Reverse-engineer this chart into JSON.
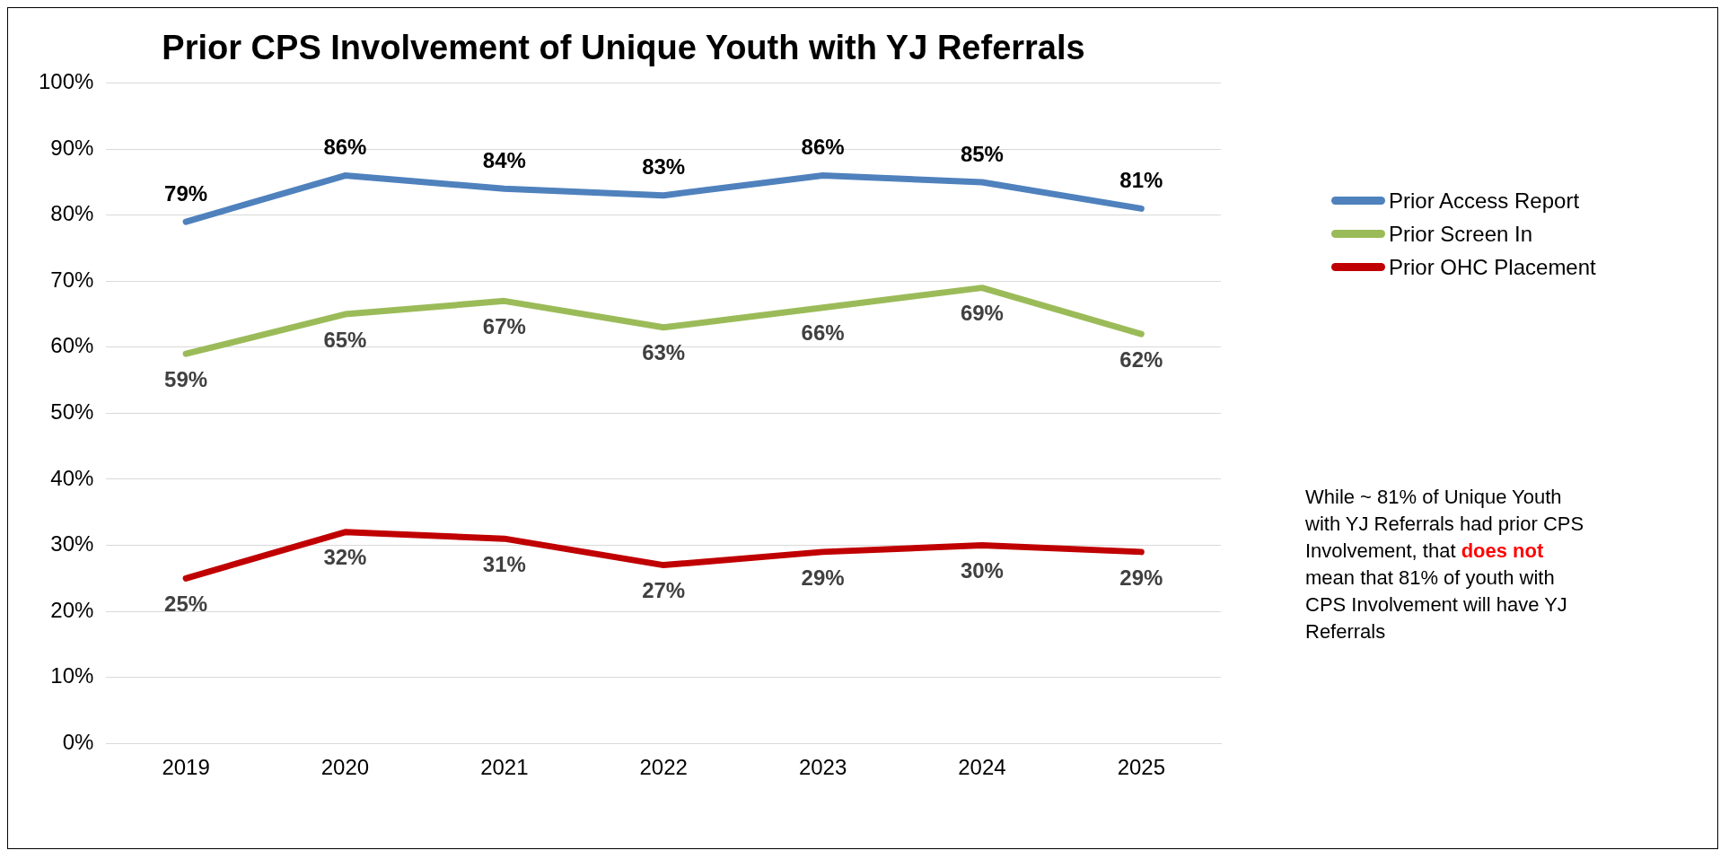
{
  "chart_data": {
    "type": "line",
    "title": "Prior CPS Involvement of Unique Youth with YJ Referrals",
    "categories": [
      "2019",
      "2020",
      "2021",
      "2022",
      "2023",
      "2024",
      "2025"
    ],
    "series": [
      {
        "name": "Prior Access Report",
        "color": "#4f81bd",
        "values": [
          79,
          86,
          84,
          83,
          86,
          85,
          81
        ],
        "value_labels": [
          "79%",
          "86%",
          "84%",
          "83%",
          "86%",
          "85%",
          "81%"
        ]
      },
      {
        "name": "Prior Screen In",
        "color": "#9bbb59",
        "values": [
          59,
          65,
          67,
          63,
          66,
          69,
          62
        ],
        "value_labels": [
          "59%",
          "65%",
          "67%",
          "63%",
          "66%",
          "69%",
          "62%"
        ]
      },
      {
        "name": "Prior OHC Placement",
        "color": "#c00000",
        "values": [
          25,
          32,
          31,
          27,
          29,
          30,
          29
        ],
        "value_labels": [
          "25%",
          "32%",
          "31%",
          "27%",
          "29%",
          "30%",
          "29%"
        ]
      }
    ],
    "ylim": [
      0,
      100
    ],
    "yticks": [
      {
        "value": 0,
        "label": "0%"
      },
      {
        "value": 10,
        "label": "10%"
      },
      {
        "value": 20,
        "label": "20%"
      },
      {
        "value": 30,
        "label": "30%"
      },
      {
        "value": 40,
        "label": "40%"
      },
      {
        "value": 50,
        "label": "50%"
      },
      {
        "value": 60,
        "label": "60%"
      },
      {
        "value": 70,
        "label": "70%"
      },
      {
        "value": 80,
        "label": "80%"
      },
      {
        "value": 90,
        "label": "90%"
      },
      {
        "value": 100,
        "label": "100%"
      }
    ],
    "grid": "y",
    "legend": "right",
    "marker": "none",
    "line_style": "solid",
    "annotations": [
      "While ~ 81% of Unique Youth with YJ Referrals had prior CPS Involvement, that ",
      "does not",
      " mean that 81% of youth with CPS Involvement will have YJ Referrals"
    ]
  }
}
